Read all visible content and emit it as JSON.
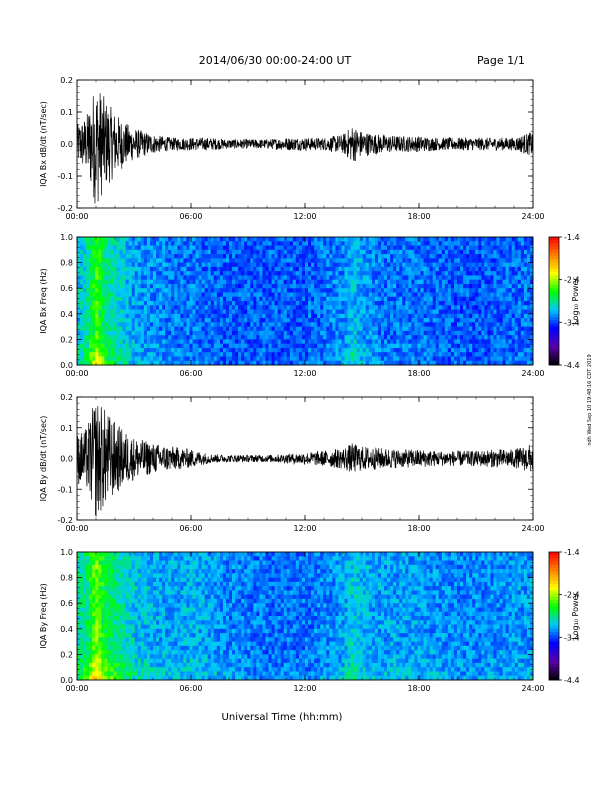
{
  "header": {
    "title": "2014/06/30  00:00-24:00 UT",
    "page": "Page 1/1"
  },
  "side_note": "ndh Wed Sep 10 19:48:16 CDT 2019",
  "footer": {
    "xlabel": "Universal Time (hh:mm)"
  },
  "colorbar": {
    "label": "Log₁₀ Power",
    "tick_labels": [
      "-1.4",
      "-2.4",
      "-3.4",
      "-4.4"
    ],
    "colors": [
      "#000000",
      "#5b00a8",
      "#0000ff",
      "#00c8ff",
      "#00ff00",
      "#ffff00",
      "#ff8000",
      "#ff0000"
    ]
  },
  "chart_data": [
    {
      "type": "line",
      "ylabel": "IQA Bx dB/dt (nT/sec)",
      "xlim": [
        "00:00",
        "24:00"
      ],
      "x_tick_labels": [
        "00:00",
        "06:00",
        "12:00",
        "18:00",
        "24:00"
      ],
      "ylim": [
        -0.2,
        0.2
      ],
      "y_tick_labels": [
        "0.2",
        "0.1",
        "0.0",
        "-0.1",
        "-0.2"
      ],
      "color": "#000000",
      "x_hours": [
        0,
        0.5,
        1,
        1.5,
        2,
        2.5,
        3,
        3.5,
        4,
        5,
        6,
        7,
        8,
        9,
        10,
        11,
        12,
        13,
        14,
        14.5,
        15,
        16,
        17,
        18,
        19,
        20,
        21,
        22,
        23,
        23.5,
        24
      ],
      "amplitude": [
        0.06,
        0.09,
        0.2,
        0.14,
        0.1,
        0.07,
        0.05,
        0.04,
        0.03,
        0.02,
        0.02,
        0.02,
        0.015,
        0.015,
        0.015,
        0.02,
        0.02,
        0.02,
        0.03,
        0.06,
        0.04,
        0.03,
        0.025,
        0.025,
        0.02,
        0.02,
        0.02,
        0.02,
        0.02,
        0.03,
        0.04
      ]
    },
    {
      "type": "heatmap",
      "ylabel": "IQA Bx Freq (Hz)",
      "xlim": [
        "00:00",
        "24:00"
      ],
      "x_tick_labels": [
        "00:00",
        "06:00",
        "12:00",
        "18:00",
        "24:00"
      ],
      "ylim": [
        0,
        1.0
      ],
      "y_tick_labels": [
        "1.0",
        "0.8",
        "0.6",
        "0.4",
        "0.2",
        "0.0"
      ],
      "color_range": [
        -4.4,
        -1.4
      ],
      "x_hours": [
        0,
        0.5,
        1,
        1.5,
        2,
        2.5,
        3,
        4,
        5,
        6,
        8,
        10,
        12,
        13,
        14,
        14.5,
        15,
        16,
        18,
        20,
        22,
        24
      ],
      "background_log_power": [
        -3.1,
        -3.0,
        -2.6,
        -2.9,
        -3.0,
        -3.1,
        -3.2,
        -3.25,
        -3.3,
        -3.3,
        -3.35,
        -3.35,
        -3.35,
        -3.3,
        -3.25,
        -3.1,
        -3.2,
        -3.3,
        -3.3,
        -3.35,
        -3.35,
        -3.3
      ]
    },
    {
      "type": "line",
      "ylabel": "IQA By dB/dt (nT/sec)",
      "xlim": [
        "00:00",
        "24:00"
      ],
      "x_tick_labels": [
        "00:00",
        "06:00",
        "12:00",
        "18:00",
        "24:00"
      ],
      "ylim": [
        -0.2,
        0.2
      ],
      "y_tick_labels": [
        "0.2",
        "0.1",
        "0.0",
        "-0.1",
        "-0.2"
      ],
      "color": "#000000",
      "x_hours": [
        0,
        0.5,
        1,
        1.5,
        2,
        2.5,
        3,
        3.5,
        4,
        5,
        6,
        7,
        8,
        9,
        10,
        11,
        12,
        13,
        14,
        14.5,
        15,
        16,
        17,
        18,
        19,
        20,
        21,
        22,
        23,
        23.5,
        24
      ],
      "amplitude": [
        0.08,
        0.1,
        0.2,
        0.16,
        0.12,
        0.09,
        0.07,
        0.06,
        0.05,
        0.04,
        0.03,
        0.015,
        0.012,
        0.012,
        0.012,
        0.015,
        0.02,
        0.025,
        0.035,
        0.05,
        0.04,
        0.035,
        0.03,
        0.03,
        0.025,
        0.025,
        0.025,
        0.03,
        0.03,
        0.04,
        0.05
      ]
    },
    {
      "type": "heatmap",
      "ylabel": "IQA By Freq (Hz)",
      "xlim": [
        "00:00",
        "24:00"
      ],
      "x_tick_labels": [
        "00:00",
        "06:00",
        "12:00",
        "18:00",
        "24:00"
      ],
      "ylim": [
        0,
        1.0
      ],
      "y_tick_labels": [
        "1.0",
        "0.8",
        "0.6",
        "0.4",
        "0.2",
        "0.0"
      ],
      "color_range": [
        -4.4,
        -1.4
      ],
      "x_hours": [
        0,
        0.5,
        1,
        1.5,
        2,
        2.5,
        3,
        4,
        5,
        6,
        8,
        10,
        12,
        13,
        14,
        14.5,
        15,
        16,
        18,
        20,
        22,
        24
      ],
      "background_log_power": [
        -3.0,
        -2.9,
        -2.5,
        -2.8,
        -2.9,
        -3.0,
        -3.1,
        -3.15,
        -3.2,
        -3.15,
        -3.25,
        -3.3,
        -3.3,
        -3.25,
        -3.2,
        -3.05,
        -3.15,
        -3.2,
        -3.2,
        -3.25,
        -3.25,
        -3.2
      ]
    }
  ]
}
